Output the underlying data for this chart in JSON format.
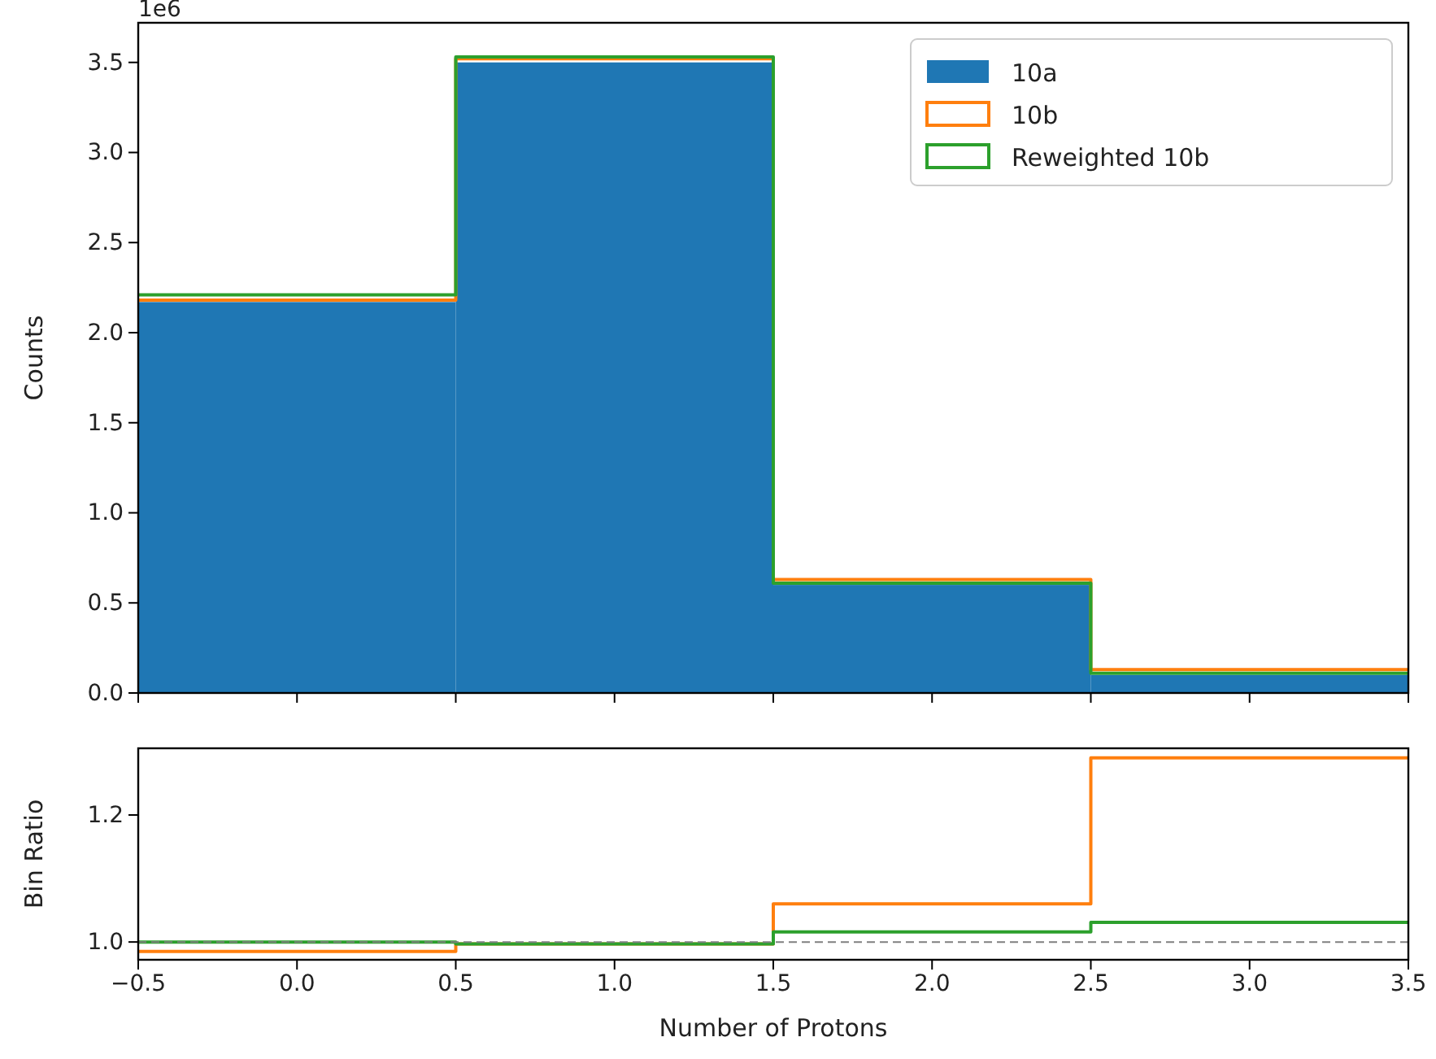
{
  "chart_data": [
    {
      "type": "histogram",
      "ylabel": "Counts",
      "annotations": [
        "1e6"
      ],
      "bins": [
        -0.5,
        0.5,
        1.5,
        2.5,
        3.5
      ],
      "xlim": [
        -0.5,
        3.5
      ],
      "xticks": [
        -0.5,
        0.0,
        0.5,
        1.0,
        1.5,
        2.0,
        2.5,
        3.0,
        3.5
      ],
      "ylim": [
        0,
        3.72
      ],
      "yticks": [
        {
          "value": 0,
          "label": "0.0"
        },
        0.5,
        {
          "value": 1,
          "label": "1.0"
        },
        1.5,
        {
          "value": 2,
          "label": "2.0"
        },
        2.5,
        {
          "value": 3,
          "label": "3.0"
        },
        3.5
      ],
      "tick_labels": "y",
      "legend": "top right",
      "grid": false,
      "series": [
        {
          "name": "10a",
          "color": "#1f77b4",
          "values": [
            2.17,
            3.5,
            0.6,
            0.1
          ]
        },
        {
          "name": "10b",
          "type": "step",
          "color": "#ff7f0e",
          "x": [
            -0.5,
            0.5,
            1.5,
            2.5,
            3.5
          ],
          "values": [
            2.18,
            3.52,
            0.63,
            0.13,
            0.13
          ]
        },
        {
          "name": "Reweighted 10b",
          "type": "step",
          "color": "#2ca02c",
          "x": [
            -0.5,
            0.5,
            1.5,
            2.5,
            3.5
          ],
          "values": [
            2.21,
            3.53,
            0.61,
            0.11,
            0.11
          ]
        }
      ]
    },
    {
      "type": "step",
      "xlabel": "Number of Protons",
      "ylabel": "Bin Ratio",
      "x": [
        -0.5,
        0.5,
        1.5,
        2.5,
        3.5
      ],
      "xlim": [
        -0.5,
        3.5
      ],
      "xticks": [
        {
          "value": -0.5,
          "label": "−0.5"
        },
        {
          "value": 0,
          "label": "0.0"
        },
        0.5,
        {
          "value": 1,
          "label": "1.0"
        },
        1.5,
        {
          "value": 2,
          "label": "2.0"
        },
        2.5,
        {
          "value": 3,
          "label": "3.0"
        },
        3.5
      ],
      "ylim": [
        0.972,
        1.305
      ],
      "yticks": [
        {
          "value": 1,
          "label": "1.0"
        },
        1.2
      ],
      "grid": false,
      "ref_lines": [
        {
          "axis": "y",
          "value": 1,
          "color": "#808080",
          "line_style": "dashed"
        }
      ],
      "series": [
        {
          "color": "#ff7f0e",
          "values": [
            0.985,
            0.997,
            1.06,
            1.29,
            1.29
          ]
        },
        {
          "color": "#2ca02c",
          "values": [
            1.0,
            0.997,
            1.016,
            1.031,
            1.031
          ]
        }
      ]
    }
  ]
}
